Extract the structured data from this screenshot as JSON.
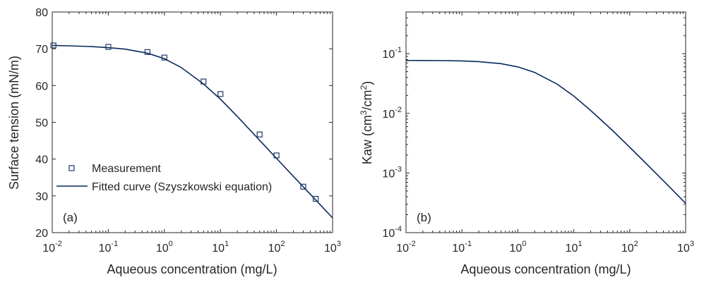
{
  "chart_data": [
    {
      "type": "scatter",
      "panel_label": "(a)",
      "xlabel": "Aqueous concentration (mg/L)",
      "ylabel": "Surface tension (mN/m)",
      "xscale": "log",
      "yscale": "linear",
      "xlim": [
        0.01,
        1000
      ],
      "ylim": [
        20,
        80
      ],
      "x_ticks": [
        {
          "base": "10",
          "exp": "-2"
        },
        {
          "base": "10",
          "exp": "-1"
        },
        {
          "base": "10",
          "exp": "0"
        },
        {
          "base": "10",
          "exp": "1"
        },
        {
          "base": "10",
          "exp": "2"
        },
        {
          "base": "10",
          "exp": "3"
        }
      ],
      "y_ticks": [
        "20",
        "30",
        "40",
        "50",
        "60",
        "70",
        "80"
      ],
      "legend_position": "lower-left",
      "grid": false,
      "series": [
        {
          "name": "Measurement",
          "kind": "markers",
          "marker": "square",
          "color": "#1f3864",
          "x": [
            0.0105,
            0.1,
            0.5,
            1,
            5,
            10,
            50,
            100,
            300,
            500
          ],
          "y": [
            70.9,
            70.5,
            69.1,
            67.6,
            61.1,
            57.7,
            46.7,
            41.0,
            32.5,
            29.2
          ]
        },
        {
          "name": "Fitted curve (Szyszkowski equation)",
          "kind": "line",
          "color": "#0a2a5e",
          "x": [
            0.01,
            0.02,
            0.05,
            0.1,
            0.2,
            0.5,
            1,
            2,
            5,
            10,
            20,
            50,
            100,
            200,
            500,
            1000
          ],
          "y": [
            70.9,
            70.8,
            70.6,
            70.3,
            69.9,
            68.8,
            67.3,
            64.9,
            60.4,
            56.3,
            51.6,
            45.1,
            40.2,
            35.3,
            28.9,
            24.0
          ]
        }
      ]
    },
    {
      "type": "line",
      "panel_label": "(b)",
      "xlabel": "Aqueous concentration (mg/L)",
      "ylabel_parts": {
        "a": "Kaw (cm",
        "sup1": "3",
        "b": "/cm",
        "sup2": "2",
        "c": ")"
      },
      "xscale": "log",
      "yscale": "log",
      "xlim": [
        0.01,
        1000
      ],
      "ylim": [
        0.0001,
        0.5
      ],
      "x_ticks": [
        {
          "base": "10",
          "exp": "-2"
        },
        {
          "base": "10",
          "exp": "-1"
        },
        {
          "base": "10",
          "exp": "0"
        },
        {
          "base": "10",
          "exp": "1"
        },
        {
          "base": "10",
          "exp": "2"
        },
        {
          "base": "10",
          "exp": "3"
        }
      ],
      "y_ticks": [
        {
          "base": "10",
          "exp": "-4"
        },
        {
          "base": "10",
          "exp": "-3"
        },
        {
          "base": "10",
          "exp": "-2"
        },
        {
          "base": "10",
          "exp": "-1"
        }
      ],
      "grid": false,
      "series": [
        {
          "kind": "line",
          "color": "#0a2a5e",
          "x": [
            0.01,
            0.02,
            0.05,
            0.1,
            0.2,
            0.5,
            1,
            2,
            5,
            10,
            20,
            50,
            100,
            200,
            500,
            1000
          ],
          "y": [
            0.077,
            0.0768,
            0.0765,
            0.0755,
            0.0735,
            0.068,
            0.06,
            0.0485,
            0.031,
            0.0195,
            0.0112,
            0.0051,
            0.0027,
            0.00142,
            0.0006,
            0.00031
          ]
        }
      ]
    }
  ]
}
